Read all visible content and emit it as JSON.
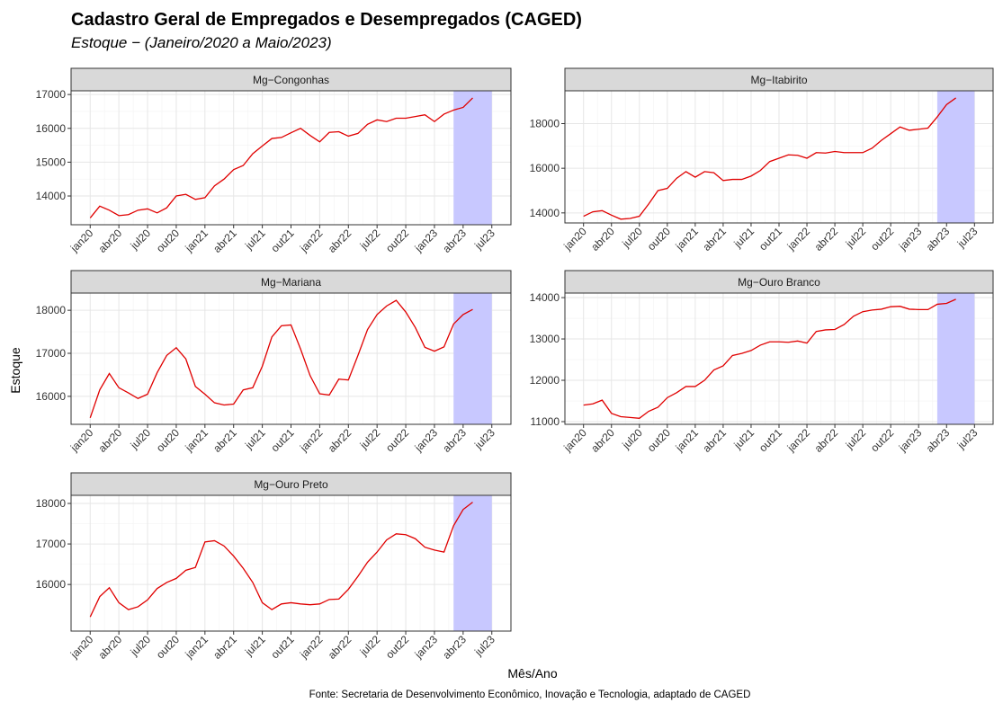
{
  "title": "Cadastro Geral de Empregados e Desempregados (CAGED)",
  "subtitle": "Estoque − (Janeiro/2020 a Maio/2023)",
  "y_label": "Estoque",
  "x_label": "Mês/Ano",
  "caption": "Fonte: Secretaria de Desenvolvimento Econômico, Inovação e Tecnologia, adaptado de CAGED",
  "chart_data": [
    {
      "type": "line",
      "title": "Mg−Congonhas",
      "grid": true,
      "x": [
        "2020-01",
        "2020-02",
        "2020-03",
        "2020-04",
        "2020-05",
        "2020-06",
        "2020-07",
        "2020-08",
        "2020-09",
        "2020-10",
        "2020-11",
        "2020-12",
        "2021-01",
        "2021-02",
        "2021-03",
        "2021-04",
        "2021-05",
        "2021-06",
        "2021-07",
        "2021-08",
        "2021-09",
        "2021-10",
        "2021-11",
        "2021-12",
        "2022-01",
        "2022-02",
        "2022-03",
        "2022-04",
        "2022-05",
        "2022-06",
        "2022-07",
        "2022-08",
        "2022-09",
        "2022-10",
        "2022-11",
        "2022-12",
        "2023-01",
        "2023-02",
        "2023-03",
        "2023-04",
        "2023-05"
      ],
      "series": [
        {
          "color": "#e00000",
          "values": [
            13350,
            13700,
            13580,
            13420,
            13450,
            13580,
            13620,
            13500,
            13650,
            14000,
            14050,
            13900,
            13950,
            14300,
            14500,
            14780,
            14900,
            15250,
            15480,
            15700,
            15730,
            15870,
            16000,
            15790,
            15600,
            15880,
            15900,
            15770,
            15850,
            16120,
            16250,
            16200,
            16300,
            16300,
            16350,
            16400,
            16200,
            16420,
            16540,
            16620,
            16900
          ]
        }
      ],
      "band": {
        "x": [
          "2023-03",
          "2023-07"
        ],
        "color": "#c8c8ff"
      },
      "xlim": [
        "2019-11",
        "2023-09"
      ],
      "ylim": [
        13150,
        17110
      ],
      "yticks": [
        14000,
        15000,
        16000,
        17000
      ],
      "xticks": [
        {
          "value": "2020-01",
          "label": "jan20"
        },
        {
          "value": "2020-04",
          "label": "abr20"
        },
        {
          "value": "2020-07",
          "label": "jul20"
        },
        {
          "value": "2020-10",
          "label": "out20"
        },
        {
          "value": "2021-01",
          "label": "jan21"
        },
        {
          "value": "2021-04",
          "label": "abr21"
        },
        {
          "value": "2021-07",
          "label": "jul21"
        },
        {
          "value": "2021-10",
          "label": "out21"
        },
        {
          "value": "2022-01",
          "label": "jan22"
        },
        {
          "value": "2022-04",
          "label": "abr22"
        },
        {
          "value": "2022-07",
          "label": "jul22"
        },
        {
          "value": "2022-10",
          "label": "out22"
        },
        {
          "value": "2023-01",
          "label": "jan23"
        },
        {
          "value": "2023-04",
          "label": "abr23"
        },
        {
          "value": "2023-07",
          "label": "jul23"
        }
      ]
    },
    {
      "type": "line",
      "title": "Mg−Itabirito",
      "grid": true,
      "x": [
        "2020-01",
        "2020-02",
        "2020-03",
        "2020-04",
        "2020-05",
        "2020-06",
        "2020-07",
        "2020-08",
        "2020-09",
        "2020-10",
        "2020-11",
        "2020-12",
        "2021-01",
        "2021-02",
        "2021-03",
        "2021-04",
        "2021-05",
        "2021-06",
        "2021-07",
        "2021-08",
        "2021-09",
        "2021-10",
        "2021-11",
        "2021-12",
        "2022-01",
        "2022-02",
        "2022-03",
        "2022-04",
        "2022-05",
        "2022-06",
        "2022-07",
        "2022-08",
        "2022-09",
        "2022-10",
        "2022-11",
        "2022-12",
        "2023-01",
        "2023-02",
        "2023-03",
        "2023-04",
        "2023-05"
      ],
      "series": [
        {
          "color": "#e00000",
          "values": [
            13850,
            14050,
            14100,
            13900,
            13720,
            13750,
            13850,
            14400,
            15000,
            15100,
            15550,
            15850,
            15600,
            15850,
            15800,
            15450,
            15500,
            15500,
            15650,
            15900,
            16300,
            16450,
            16600,
            16580,
            16450,
            16700,
            16680,
            16750,
            16700,
            16700,
            16700,
            16900,
            17250,
            17550,
            17850,
            17700,
            17750,
            17800,
            18300,
            18850,
            19150
          ]
        }
      ],
      "band": {
        "x": [
          "2023-03",
          "2023-07"
        ],
        "color": "#c8c8ff"
      },
      "xlim": [
        "2019-11",
        "2023-09"
      ],
      "ylim": [
        13550,
        19470
      ],
      "yticks": [
        14000,
        16000,
        18000
      ],
      "xticks": [
        {
          "value": "2020-01",
          "label": "jan20"
        },
        {
          "value": "2020-04",
          "label": "abr20"
        },
        {
          "value": "2020-07",
          "label": "jul20"
        },
        {
          "value": "2020-10",
          "label": "out20"
        },
        {
          "value": "2021-01",
          "label": "jan21"
        },
        {
          "value": "2021-04",
          "label": "abr21"
        },
        {
          "value": "2021-07",
          "label": "jul21"
        },
        {
          "value": "2021-10",
          "label": "out21"
        },
        {
          "value": "2022-01",
          "label": "jan22"
        },
        {
          "value": "2022-04",
          "label": "abr22"
        },
        {
          "value": "2022-07",
          "label": "jul22"
        },
        {
          "value": "2022-10",
          "label": "out22"
        },
        {
          "value": "2023-01",
          "label": "jan23"
        },
        {
          "value": "2023-04",
          "label": "abr23"
        },
        {
          "value": "2023-07",
          "label": "jul23"
        }
      ]
    },
    {
      "type": "line",
      "title": "Mg−Mariana",
      "grid": true,
      "x": [
        "2020-01",
        "2020-02",
        "2020-03",
        "2020-04",
        "2020-05",
        "2020-06",
        "2020-07",
        "2020-08",
        "2020-09",
        "2020-10",
        "2020-11",
        "2020-12",
        "2021-01",
        "2021-02",
        "2021-03",
        "2021-04",
        "2021-05",
        "2021-06",
        "2021-07",
        "2021-08",
        "2021-09",
        "2021-10",
        "2021-11",
        "2021-12",
        "2022-01",
        "2022-02",
        "2022-03",
        "2022-04",
        "2022-05",
        "2022-06",
        "2022-07",
        "2022-08",
        "2022-09",
        "2022-10",
        "2022-11",
        "2022-12",
        "2023-01",
        "2023-02",
        "2023-03",
        "2023-04",
        "2023-05"
      ],
      "series": [
        {
          "color": "#e00000",
          "values": [
            15500,
            16150,
            16530,
            16200,
            16080,
            15950,
            16050,
            16550,
            16950,
            17130,
            16870,
            16230,
            16050,
            15850,
            15800,
            15820,
            16150,
            16200,
            16700,
            17380,
            17640,
            17660,
            17100,
            16480,
            16060,
            16030,
            16400,
            16380,
            16950,
            17550,
            17900,
            18100,
            18230,
            17960,
            17600,
            17140,
            17050,
            17150,
            17680,
            17900,
            18020
          ]
        }
      ],
      "band": {
        "x": [
          "2023-03",
          "2023-07"
        ],
        "color": "#c8c8ff"
      },
      "xlim": [
        "2019-11",
        "2023-09"
      ],
      "ylim": [
        15350,
        18400
      ],
      "yticks": [
        16000,
        17000,
        18000
      ],
      "xticks": [
        {
          "value": "2020-01",
          "label": "jan20"
        },
        {
          "value": "2020-04",
          "label": "abr20"
        },
        {
          "value": "2020-07",
          "label": "jul20"
        },
        {
          "value": "2020-10",
          "label": "out20"
        },
        {
          "value": "2021-01",
          "label": "jan21"
        },
        {
          "value": "2021-04",
          "label": "abr21"
        },
        {
          "value": "2021-07",
          "label": "jul21"
        },
        {
          "value": "2021-10",
          "label": "out21"
        },
        {
          "value": "2022-01",
          "label": "jan22"
        },
        {
          "value": "2022-04",
          "label": "abr22"
        },
        {
          "value": "2022-07",
          "label": "jul22"
        },
        {
          "value": "2022-10",
          "label": "out22"
        },
        {
          "value": "2023-01",
          "label": "jan23"
        },
        {
          "value": "2023-04",
          "label": "abr23"
        },
        {
          "value": "2023-07",
          "label": "jul23"
        }
      ]
    },
    {
      "type": "line",
      "title": "Mg−Ouro Branco",
      "grid": true,
      "x": [
        "2020-01",
        "2020-02",
        "2020-03",
        "2020-04",
        "2020-05",
        "2020-06",
        "2020-07",
        "2020-08",
        "2020-09",
        "2020-10",
        "2020-11",
        "2020-12",
        "2021-01",
        "2021-02",
        "2021-03",
        "2021-04",
        "2021-05",
        "2021-06",
        "2021-07",
        "2021-08",
        "2021-09",
        "2021-10",
        "2021-11",
        "2021-12",
        "2022-01",
        "2022-02",
        "2022-03",
        "2022-04",
        "2022-05",
        "2022-06",
        "2022-07",
        "2022-08",
        "2022-09",
        "2022-10",
        "2022-11",
        "2022-12",
        "2023-01",
        "2023-02",
        "2023-03",
        "2023-04",
        "2023-05"
      ],
      "series": [
        {
          "color": "#e00000",
          "values": [
            11400,
            11430,
            11520,
            11200,
            11120,
            11100,
            11080,
            11250,
            11350,
            11580,
            11700,
            11850,
            11850,
            12000,
            12250,
            12350,
            12600,
            12650,
            12720,
            12850,
            12930,
            12930,
            12920,
            12950,
            12900,
            13180,
            13220,
            13230,
            13350,
            13550,
            13660,
            13700,
            13720,
            13780,
            13790,
            13720,
            13710,
            13710,
            13840,
            13860,
            13960
          ]
        }
      ],
      "band": {
        "x": [
          "2023-03",
          "2023-07"
        ],
        "color": "#c8c8ff"
      },
      "xlim": [
        "2019-11",
        "2023-09"
      ],
      "ylim": [
        10935,
        14110
      ],
      "yticks": [
        11000,
        12000,
        13000,
        14000
      ],
      "xticks": [
        {
          "value": "2020-01",
          "label": "jan20"
        },
        {
          "value": "2020-04",
          "label": "abr20"
        },
        {
          "value": "2020-07",
          "label": "jul20"
        },
        {
          "value": "2020-10",
          "label": "out20"
        },
        {
          "value": "2021-01",
          "label": "jan21"
        },
        {
          "value": "2021-04",
          "label": "abr21"
        },
        {
          "value": "2021-07",
          "label": "jul21"
        },
        {
          "value": "2021-10",
          "label": "out21"
        },
        {
          "value": "2022-01",
          "label": "jan22"
        },
        {
          "value": "2022-04",
          "label": "abr22"
        },
        {
          "value": "2022-07",
          "label": "jul22"
        },
        {
          "value": "2022-10",
          "label": "out22"
        },
        {
          "value": "2023-01",
          "label": "jan23"
        },
        {
          "value": "2023-04",
          "label": "abr23"
        },
        {
          "value": "2023-07",
          "label": "jul23"
        }
      ]
    },
    {
      "type": "line",
      "title": "Mg−Ouro Preto",
      "grid": true,
      "x": [
        "2020-01",
        "2020-02",
        "2020-03",
        "2020-04",
        "2020-05",
        "2020-06",
        "2020-07",
        "2020-08",
        "2020-09",
        "2020-10",
        "2020-11",
        "2020-12",
        "2021-01",
        "2021-02",
        "2021-03",
        "2021-04",
        "2021-05",
        "2021-06",
        "2021-07",
        "2021-08",
        "2021-09",
        "2021-10",
        "2021-11",
        "2021-12",
        "2022-01",
        "2022-02",
        "2022-03",
        "2022-04",
        "2022-05",
        "2022-06",
        "2022-07",
        "2022-08",
        "2022-09",
        "2022-10",
        "2022-11",
        "2022-12",
        "2023-01",
        "2023-02",
        "2023-03",
        "2023-04",
        "2023-05"
      ],
      "series": [
        {
          "color": "#e00000",
          "values": [
            15200,
            15700,
            15920,
            15550,
            15380,
            15450,
            15620,
            15900,
            16050,
            16150,
            16350,
            16420,
            17050,
            17080,
            16950,
            16700,
            16400,
            16050,
            15550,
            15380,
            15520,
            15550,
            15520,
            15500,
            15520,
            15630,
            15640,
            15880,
            16200,
            16550,
            16800,
            17100,
            17250,
            17230,
            17130,
            16920,
            16850,
            16800,
            17450,
            17850,
            18030
          ]
        }
      ],
      "band": {
        "x": [
          "2023-03",
          "2023-07"
        ],
        "color": "#c8c8ff"
      },
      "xlim": [
        "2019-11",
        "2023-09"
      ],
      "ylim": [
        14850,
        18200
      ],
      "yticks": [
        16000,
        17000,
        18000
      ],
      "xticks": [
        {
          "value": "2020-01",
          "label": "jan20"
        },
        {
          "value": "2020-04",
          "label": "abr20"
        },
        {
          "value": "2020-07",
          "label": "jul20"
        },
        {
          "value": "2020-10",
          "label": "out20"
        },
        {
          "value": "2021-01",
          "label": "jan21"
        },
        {
          "value": "2021-04",
          "label": "abr21"
        },
        {
          "value": "2021-07",
          "label": "jul21"
        },
        {
          "value": "2021-10",
          "label": "out21"
        },
        {
          "value": "2022-01",
          "label": "jan22"
        },
        {
          "value": "2022-04",
          "label": "abr22"
        },
        {
          "value": "2022-07",
          "label": "jul22"
        },
        {
          "value": "2022-10",
          "label": "out22"
        },
        {
          "value": "2023-01",
          "label": "jan23"
        },
        {
          "value": "2023-04",
          "label": "abr23"
        },
        {
          "value": "2023-07",
          "label": "jul23"
        }
      ]
    }
  ]
}
